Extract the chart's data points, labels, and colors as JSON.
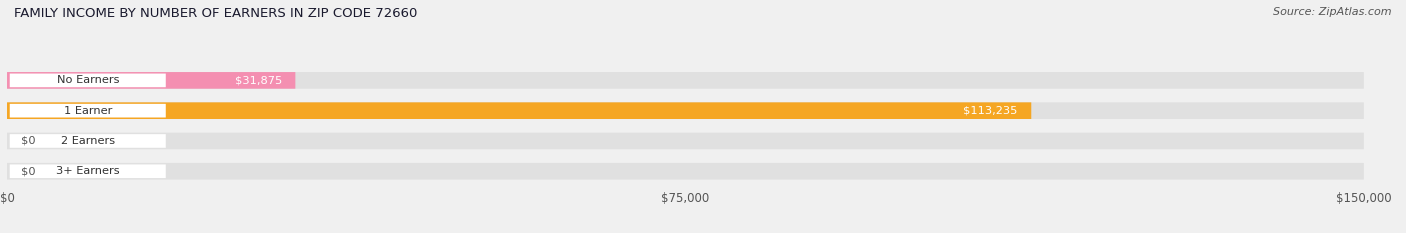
{
  "title": "FAMILY INCOME BY NUMBER OF EARNERS IN ZIP CODE 72660",
  "source": "Source: ZipAtlas.com",
  "categories": [
    "No Earners",
    "1 Earner",
    "2 Earners",
    "3+ Earners"
  ],
  "values": [
    31875,
    113235,
    0,
    0
  ],
  "bar_colors": [
    "#f48fb1",
    "#f5a623",
    "#f48fb1",
    "#a8c4e0"
  ],
  "x_ticks": [
    0,
    75000,
    150000
  ],
  "x_tick_labels": [
    "$0",
    "$75,000",
    "$150,000"
  ],
  "xlim": [
    0,
    150000
  ],
  "bar_height": 0.55,
  "background_color": "#f0f0f0",
  "bar_bg_color": "#e0e0e0"
}
